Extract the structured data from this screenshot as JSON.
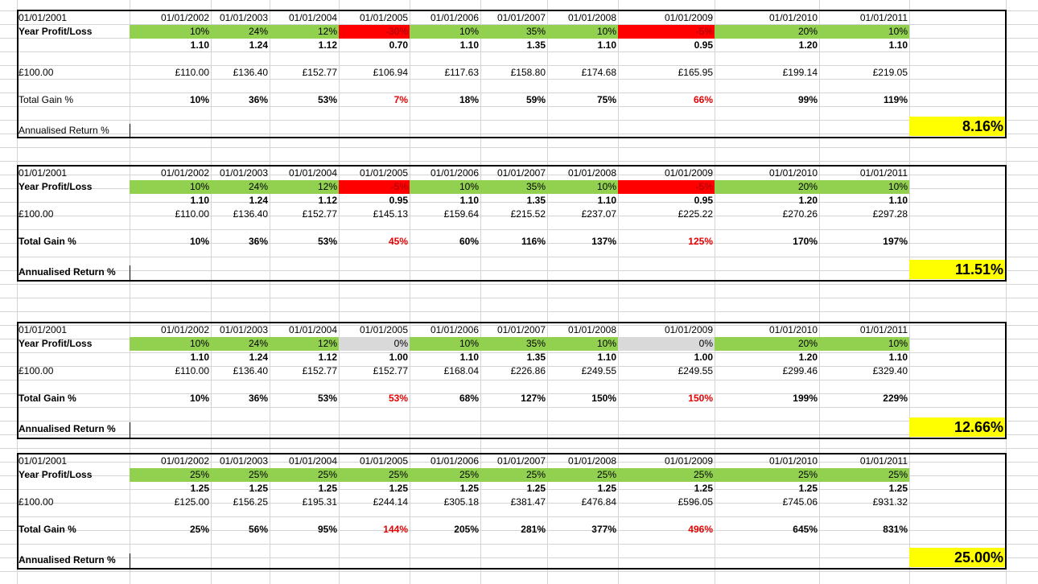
{
  "blocks": [
    {
      "dates": [
        "01/01/2001",
        "01/01/2002",
        "01/01/2003",
        "01/01/2004",
        "01/01/2005",
        "01/01/2006",
        "01/01/2007",
        "01/01/2008",
        "01/01/2009",
        "01/01/2010",
        "01/01/2011"
      ],
      "pl_label": "Year Profit/Loss",
      "pl": [
        "10%",
        "24%",
        "12%",
        "-30%",
        "10%",
        "35%",
        "10%",
        "-5%",
        "20%",
        "10%"
      ],
      "pl_style": [
        "green",
        "green",
        "green",
        "red",
        "green",
        "green",
        "green",
        "red",
        "green",
        "green"
      ],
      "mult": [
        "1.10",
        "1.24",
        "1.12",
        "0.70",
        "1.10",
        "1.35",
        "1.10",
        "0.95",
        "1.20",
        "1.10"
      ],
      "start": "£100.00",
      "values": [
        "£110.00",
        "£136.40",
        "£152.77",
        "£106.94",
        "£117.63",
        "£158.80",
        "£174.68",
        "£165.95",
        "£199.14",
        "£219.05"
      ],
      "gain_label": "Total Gain %",
      "gain": [
        "10%",
        "36%",
        "53%",
        "7%",
        "18%",
        "59%",
        "75%",
        "66%",
        "99%",
        "119%"
      ],
      "ann_label": "Annualised Return %",
      "ann": "8.16%",
      "bold_labels": false
    },
    {
      "dates": [
        "01/01/2001",
        "01/01/2002",
        "01/01/2003",
        "01/01/2004",
        "01/01/2005",
        "01/01/2006",
        "01/01/2007",
        "01/01/2008",
        "01/01/2009",
        "01/01/2010",
        "01/01/2011"
      ],
      "pl_label": "Year Profit/Loss",
      "pl": [
        "10%",
        "24%",
        "12%",
        "-5%",
        "10%",
        "35%",
        "10%",
        "-5%",
        "20%",
        "10%"
      ],
      "pl_style": [
        "green",
        "green",
        "green",
        "red",
        "green",
        "green",
        "green",
        "red",
        "green",
        "green"
      ],
      "mult": [
        "1.10",
        "1.24",
        "1.12",
        "0.95",
        "1.10",
        "1.35",
        "1.10",
        "0.95",
        "1.20",
        "1.10"
      ],
      "start": "£100.00",
      "values": [
        "£110.00",
        "£136.40",
        "£152.77",
        "£145.13",
        "£159.64",
        "£215.52",
        "£237.07",
        "£225.22",
        "£270.26",
        "£297.28"
      ],
      "gain_label": "Total Gain %",
      "gain": [
        "10%",
        "36%",
        "53%",
        "45%",
        "60%",
        "116%",
        "137%",
        "125%",
        "170%",
        "197%"
      ],
      "ann_label": "Annualised Return %",
      "ann": "11.51%",
      "bold_labels": true
    },
    {
      "dates": [
        "01/01/2001",
        "01/01/2002",
        "01/01/2003",
        "01/01/2004",
        "01/01/2005",
        "01/01/2006",
        "01/01/2007",
        "01/01/2008",
        "01/01/2009",
        "01/01/2010",
        "01/01/2011"
      ],
      "pl_label": "Year Profit/Loss",
      "pl": [
        "10%",
        "24%",
        "12%",
        "0%",
        "10%",
        "35%",
        "10%",
        "0%",
        "20%",
        "10%"
      ],
      "pl_style": [
        "green",
        "green",
        "green",
        "grey",
        "green",
        "green",
        "green",
        "grey",
        "green",
        "green"
      ],
      "mult": [
        "1.10",
        "1.24",
        "1.12",
        "1.00",
        "1.10",
        "1.35",
        "1.10",
        "1.00",
        "1.20",
        "1.10"
      ],
      "start": "£100.00",
      "values": [
        "£110.00",
        "£136.40",
        "£152.77",
        "£152.77",
        "£168.04",
        "£226.86",
        "£249.55",
        "£249.55",
        "£299.46",
        "£329.40"
      ],
      "gain_label": "Total Gain %",
      "gain": [
        "10%",
        "36%",
        "53%",
        "53%",
        "68%",
        "127%",
        "150%",
        "150%",
        "199%",
        "229%"
      ],
      "ann_label": "Annualised Return %",
      "ann": "12.66%",
      "bold_labels": true
    },
    {
      "dates": [
        "01/01/2001",
        "01/01/2002",
        "01/01/2003",
        "01/01/2004",
        "01/01/2005",
        "01/01/2006",
        "01/01/2007",
        "01/01/2008",
        "01/01/2009",
        "01/01/2010",
        "01/01/2011"
      ],
      "pl_label": "Year Profit/Loss",
      "pl": [
        "25%",
        "25%",
        "25%",
        "25%",
        "25%",
        "25%",
        "25%",
        "25%",
        "25%",
        "25%"
      ],
      "pl_style": [
        "green",
        "green",
        "green",
        "green",
        "green",
        "green",
        "green",
        "green",
        "green",
        "green"
      ],
      "mult": [
        "1.25",
        "1.25",
        "1.25",
        "1.25",
        "1.25",
        "1.25",
        "1.25",
        "1.25",
        "1.25",
        "1.25"
      ],
      "start": "£100.00",
      "values": [
        "£125.00",
        "£156.25",
        "£195.31",
        "£244.14",
        "£305.18",
        "£381.47",
        "£476.84",
        "£596.05",
        "£745.06",
        "£931.32"
      ],
      "gain_label": "Total Gain %",
      "gain": [
        "25%",
        "56%",
        "95%",
        "144%",
        "205%",
        "281%",
        "377%",
        "496%",
        "645%",
        "831%"
      ],
      "ann_label": "Annualised Return %",
      "ann": "25.00%",
      "bold_labels": true
    }
  ]
}
